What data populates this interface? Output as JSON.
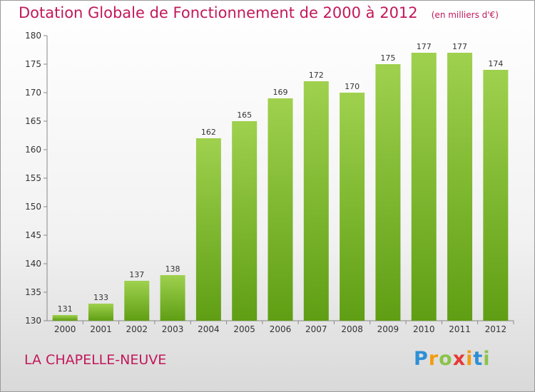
{
  "chart_data": {
    "type": "bar",
    "title": "Dotation Globale de Fonctionnement de 2000 à 2012",
    "unit": "(en milliers d'€)",
    "categories": [
      "2000",
      "2001",
      "2002",
      "2003",
      "2004",
      "2005",
      "2006",
      "2007",
      "2008",
      "2009",
      "2010",
      "2011",
      "2012"
    ],
    "values": [
      131,
      133,
      137,
      138,
      162,
      165,
      169,
      172,
      170,
      175,
      177,
      177,
      174
    ],
    "ylim": [
      130,
      180
    ],
    "yticks": [
      130,
      135,
      140,
      145,
      150,
      155,
      160,
      165,
      170,
      175,
      180
    ],
    "grid": false,
    "bar_color_top": "#9fd14e",
    "bar_color_bottom": "#5f9e14",
    "label_color": "#333333"
  },
  "footer": {
    "commune": "LA CHAPELLE-NEUVE"
  },
  "brand": {
    "letters": [
      "P",
      "r",
      "o",
      "x",
      "i",
      "t",
      "i"
    ],
    "colors": [
      "#2e8fd6",
      "#f39c12",
      "#8bc34a",
      "#e53935",
      "#f39c12",
      "#2e8fd6",
      "#8bc34a"
    ]
  }
}
